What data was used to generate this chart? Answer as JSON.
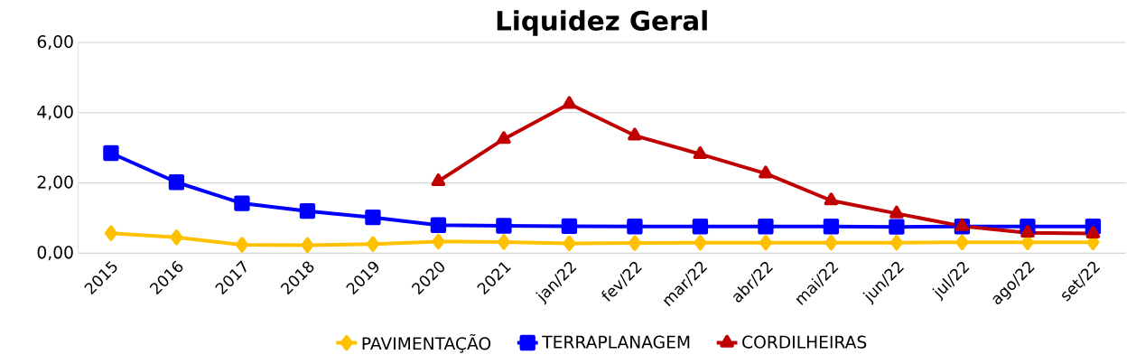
{
  "chart_data": {
    "type": "line",
    "title": "Liquidez Geral",
    "categories": [
      "2015",
      "2016",
      "2017",
      "2018",
      "2019",
      "2020",
      "2021",
      "jan/22",
      "fev/22",
      "mar/22",
      "abr/22",
      "mai/22",
      "jun/22",
      "jul/22",
      "ago/22",
      "set/22"
    ],
    "series": [
      {
        "name": "PAVIMENTAÇÃO",
        "color": "#ffc000",
        "marker": "diamond",
        "values": [
          0.57,
          0.45,
          0.24,
          0.23,
          0.26,
          0.33,
          0.32,
          0.28,
          0.29,
          0.3,
          0.3,
          0.3,
          0.3,
          0.31,
          0.31,
          0.31
        ]
      },
      {
        "name": "TERRAPLANAGEM",
        "color": "#0000ff",
        "marker": "square",
        "values": [
          2.85,
          2.02,
          1.42,
          1.2,
          1.02,
          0.8,
          0.78,
          0.77,
          0.76,
          0.76,
          0.76,
          0.76,
          0.75,
          0.76,
          0.76,
          0.76
        ]
      },
      {
        "name": "CORDILHEIRAS",
        "color": "#c00000",
        "marker": "triangle",
        "values": [
          null,
          null,
          null,
          null,
          null,
          2.05,
          3.25,
          4.25,
          3.35,
          2.82,
          2.27,
          1.5,
          1.13,
          0.77,
          0.58,
          0.56
        ]
      }
    ],
    "ylim": [
      0,
      6
    ],
    "yticks": [
      {
        "value": 0,
        "label": "0,00"
      },
      {
        "value": 2,
        "label": "2,00"
      },
      {
        "value": 4,
        "label": "4,00"
      },
      {
        "value": 6,
        "label": "6,00"
      }
    ],
    "grid": "y",
    "legend": "bottom"
  }
}
